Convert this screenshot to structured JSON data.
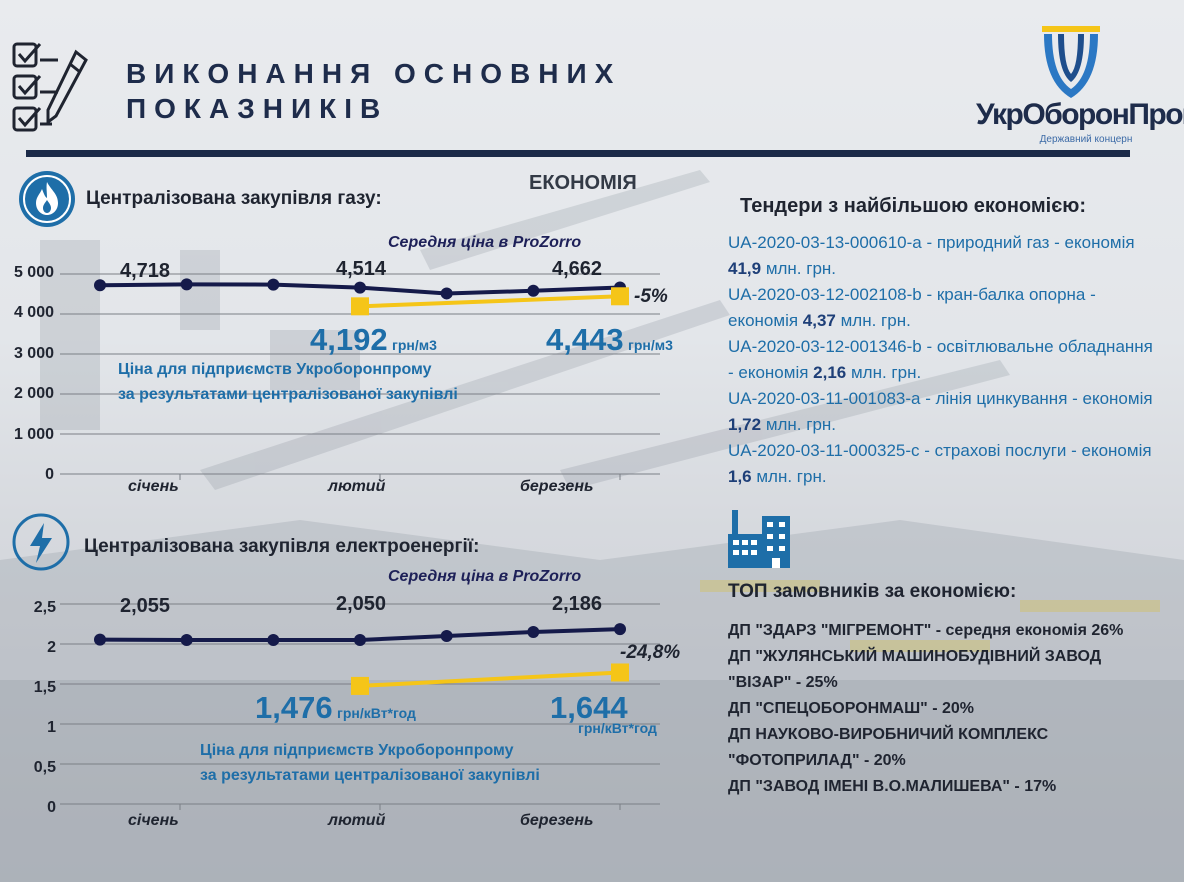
{
  "header": {
    "title_line1": "ВИКОНАННЯ ОСНОВНИХ",
    "title_line2": "ПОКАЗНИКІВ",
    "logo_name": "УкрОборонПром",
    "logo_subtitle": "Державний концерн"
  },
  "economy_label": "ЕКОНОМІЯ",
  "colors": {
    "navy": "#1b2a48",
    "series_dark": "#151a4a",
    "series_yellow": "#f5c518",
    "accent_blue": "#1e6ea8"
  },
  "icons": {
    "checklist": "checklist-with-pen-icon",
    "gas": "flame-icon",
    "electricity": "lightning-icon",
    "factory": "factory-building-icon"
  },
  "gas": {
    "heading": "Централізована закупівля газу:",
    "prozorro_label": "Середня ціна в ProZorro",
    "prozorro_labels": [
      "4,718",
      "4,514",
      "4,662"
    ],
    "pct": "-5%",
    "ukroboron_values": [
      "4,192",
      "4,443"
    ],
    "unit": "грн/м3",
    "note_line1": "Ціна для підприємств Укроборонпрому",
    "note_line2": "за результатами централізованої закупівлі",
    "y_ticks": [
      "5 000",
      "4 000",
      "3 000",
      "2 000",
      "1 000",
      "0"
    ],
    "x_ticks": [
      "січень",
      "лютий",
      "березень"
    ]
  },
  "electricity": {
    "heading": "Централізована закупівля електроенергії:",
    "prozorro_label": "Середня ціна в ProZorro",
    "prozorro_labels": [
      "2,055",
      "2,050",
      "2,186"
    ],
    "pct": "-24,8%",
    "ukroboron_values": [
      "1,476",
      "1,644"
    ],
    "unit": "грн/кВт*год",
    "note_line1": "Ціна для підприємств Укроборонпрому",
    "note_line2": "за результатами централізованої закупівлі",
    "y_ticks": [
      "2,5",
      "2",
      "1,5",
      "1",
      "0,5",
      "0"
    ],
    "x_ticks": [
      "січень",
      "лютий",
      "березень"
    ]
  },
  "chart_data": [
    {
      "type": "line",
      "title": "Централізована закупівля газу:",
      "ylim": [
        0,
        5000
      ],
      "x_ticks": [
        "січень",
        "лютий",
        "березень"
      ],
      "series": [
        {
          "name": "Середня ціна в ProZorro",
          "values": [
            4718,
            4740,
            4735,
            4660,
            4514,
            4580,
            4662
          ]
        },
        {
          "name": "Ціна для підприємств Укроборонпрому за результатами централізованої закупівлі",
          "values": [
            4192,
            4443
          ]
        }
      ],
      "grid": true
    },
    {
      "type": "line",
      "title": "Централізована закупівля електроенергії:",
      "ylim": [
        0,
        2.5
      ],
      "x_ticks": [
        "січень",
        "лютий",
        "березень"
      ],
      "series": [
        {
          "name": "Середня ціна в ProZorro",
          "values": [
            2.055,
            2.05,
            2.05,
            2.05,
            2.1,
            2.15,
            2.186
          ]
        },
        {
          "name": "Ціна для підприємств Укроборонпрому за результатами централізованої закупівлі",
          "values": [
            1.476,
            1.644
          ]
        }
      ],
      "grid": true
    }
  ],
  "tenders": {
    "title": "Тендери з найбільшою економією:",
    "items": [
      {
        "text": "UA-2020-03-13-000610-a - природний газ - економія ",
        "amount": "41,9",
        "suffix": " млн. грн."
      },
      {
        "text": "UA-2020-03-12-002108-b - кран-балка опорна - економія ",
        "amount": "4,37",
        "suffix": " млн. грн."
      },
      {
        "text": "UA-2020-03-12-001346-b - освітлювальне обладнання - економія ",
        "amount": "2,16",
        "suffix": " млн. грн."
      },
      {
        "text": "UA-2020-03-11-001083-a - лінія цинкування - економія ",
        "amount": "1,72",
        "suffix": " млн. грн."
      },
      {
        "text": "UA-2020-03-11-000325-c - страхові послуги - економія ",
        "amount": "1,6",
        "suffix": " млн. грн."
      }
    ]
  },
  "top_customers": {
    "title": "ТОП замовників за економією:",
    "items": [
      "ДП \"ЗДАРЗ \"МІГРЕМОНТ\" - середня економія 26%",
      "ДП \"ЖУЛЯНСЬКИЙ МАШИНОБУДІВНИЙ ЗАВОД \"ВІЗАР\" - 25%",
      "ДП \"СПЕЦОБОРОНМАШ\" - 20%",
      "ДП НАУКОВО-ВИРОБНИЧИЙ КОМПЛЕКС \"ФОТОПРИЛАД\" - 20%",
      "ДП \"ЗАВОД ІМЕНІ В.О.МАЛИШЕВА\" - 17%"
    ]
  }
}
